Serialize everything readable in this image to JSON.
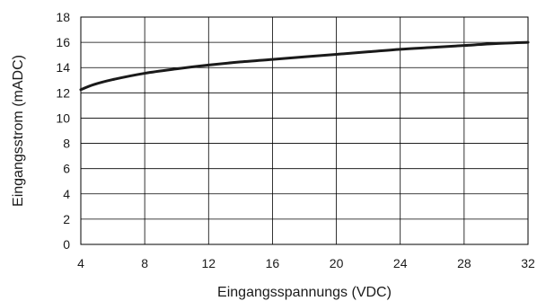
{
  "chart_data": {
    "type": "line",
    "title": "",
    "xlabel": "Eingangsspannungs (VDC)",
    "ylabel": "Eingangsstrom (mADC)",
    "xlim": [
      4,
      32
    ],
    "ylim": [
      0,
      18
    ],
    "x_ticks": [
      4,
      8,
      12,
      16,
      20,
      24,
      28,
      32
    ],
    "y_ticks": [
      0,
      2,
      4,
      6,
      8,
      10,
      12,
      14,
      16,
      18
    ],
    "grid": true,
    "legend": "none",
    "line_color": "#1a1a1a",
    "grid_color": "#000000",
    "series": [
      {
        "x": [
          4,
          4.8,
          6,
          8,
          10,
          12,
          14,
          16,
          18,
          20,
          22,
          24,
          26,
          28,
          30,
          32
        ],
        "y": [
          12.25,
          12.65,
          13.05,
          13.55,
          13.9,
          14.2,
          14.45,
          14.65,
          14.85,
          15.05,
          15.25,
          15.45,
          15.6,
          15.75,
          15.9,
          16.0
        ]
      }
    ]
  }
}
